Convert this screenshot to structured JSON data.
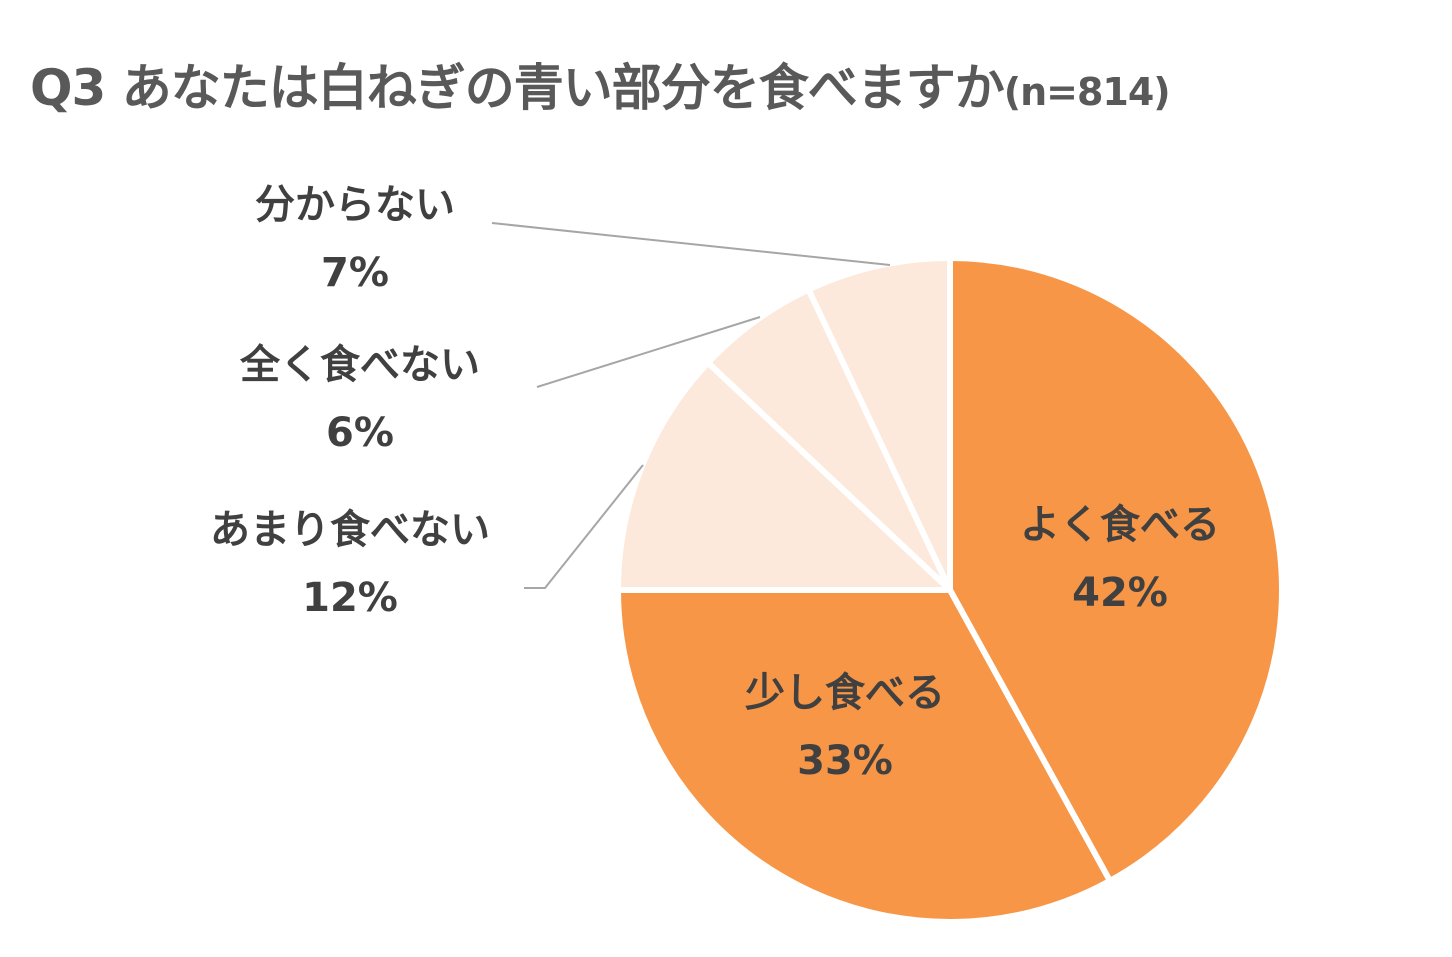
{
  "title": {
    "main": "Q3 あなたは白ねぎの青い部分を食べますか",
    "n": "(n=814)"
  },
  "colors": {
    "strong": "#F79646",
    "light": "#FCE9DB",
    "separator": "#FFFFFF",
    "leader": "#A6A6A6",
    "text": "#404040",
    "title": "#595959"
  },
  "chart_data": {
    "type": "pie",
    "title": "Q3 あなたは白ねぎの青い部分を食べますか(n=814)",
    "n": 814,
    "start_angle": "12 o'clock, clockwise",
    "slices": [
      {
        "label": "よく食べる",
        "value": 42,
        "display": "42%",
        "color": "#F79646"
      },
      {
        "label": "少し食べる",
        "value": 33,
        "display": "33%",
        "color": "#F79646"
      },
      {
        "label": "あまり食べない",
        "value": 12,
        "display": "12%",
        "color": "#FCE9DB"
      },
      {
        "label": "全く食べない",
        "value": 6,
        "display": "6%",
        "color": "#FCE9DB"
      },
      {
        "label": "分からない",
        "value": 7,
        "display": "7%",
        "color": "#FCE9DB"
      }
    ],
    "legend": "none (data labels with leader lines)"
  },
  "labels": [
    {
      "name": "よく食べる",
      "pct": "42%"
    },
    {
      "name": "少し食べる",
      "pct": "33%"
    },
    {
      "name": "あまり食べない",
      "pct": "12%"
    },
    {
      "name": "全く食べない",
      "pct": "6%"
    },
    {
      "name": "分からない",
      "pct": "7%"
    }
  ]
}
